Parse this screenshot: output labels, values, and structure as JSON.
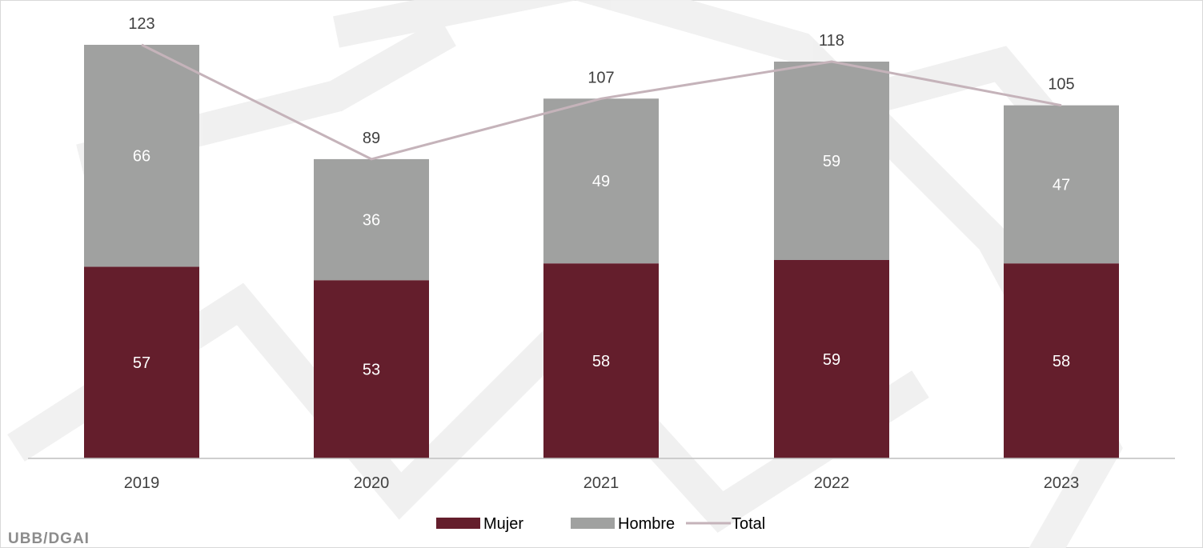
{
  "chart_data": {
    "type": "bar",
    "stacked": true,
    "categories": [
      "2019",
      "2020",
      "2021",
      "2022",
      "2023"
    ],
    "series": [
      {
        "name": "Mujer",
        "values": [
          57,
          53,
          58,
          59,
          58
        ],
        "color": "#641e2c"
      },
      {
        "name": "Hombre",
        "values": [
          66,
          36,
          49,
          59,
          47
        ],
        "color": "#a0a1a0"
      }
    ],
    "line": {
      "name": "Total",
      "values": [
        123,
        89,
        107,
        118,
        105
      ],
      "color": "#c5b3ba"
    },
    "ylim": [
      0,
      130
    ],
    "grid": false,
    "legend": "bottom",
    "title": "",
    "xlabel": "",
    "ylabel": ""
  },
  "footer": {
    "text": "UBB/DGAI"
  },
  "colors": {
    "label_inside": "#ffffff",
    "label_outside": "#404040",
    "axis": "#bfbfbf",
    "watermark": "#efefef"
  }
}
